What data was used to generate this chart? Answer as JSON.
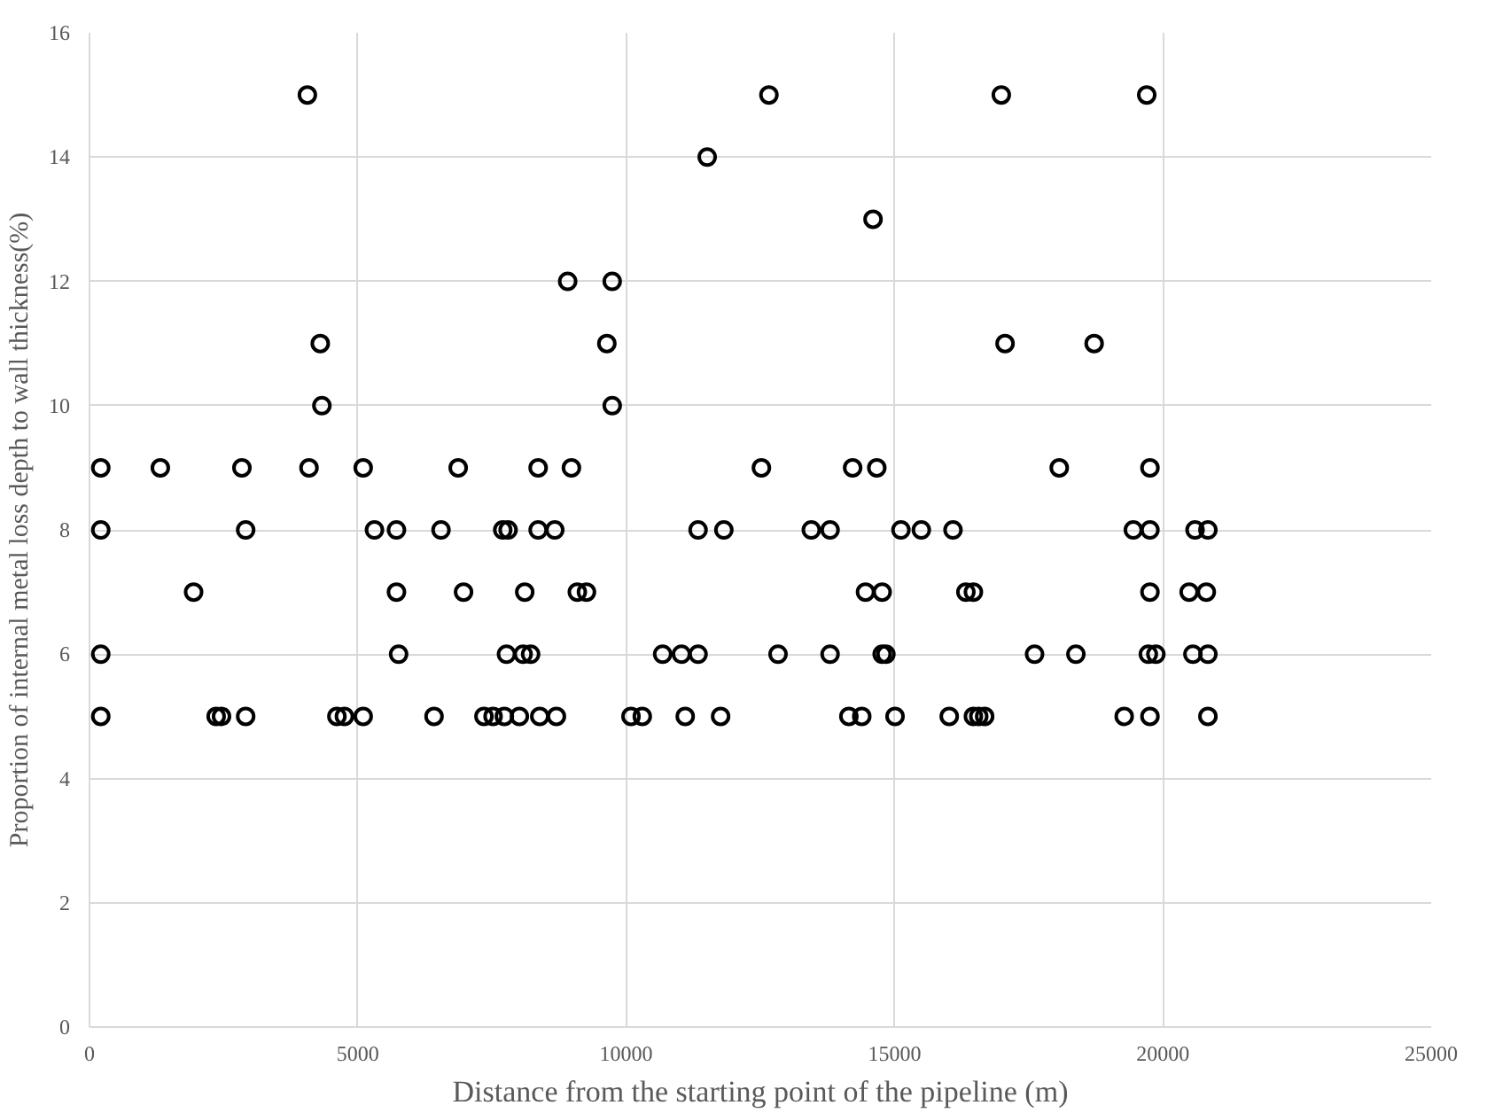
{
  "chart_data": {
    "type": "scatter",
    "xlabel": "Distance from the starting point of the pipeline (m)",
    "ylabel": "Proportion of internal metal loss depth to wall thickness(%)",
    "xlim": [
      0,
      25000
    ],
    "xticks": [
      0,
      5000,
      10000,
      15000,
      20000,
      25000
    ],
    "ylim": [
      0,
      16
    ],
    "yticks": [
      0,
      2,
      4,
      6,
      8,
      10,
      12,
      14,
      16
    ],
    "grid": true,
    "marker": "circle",
    "series": [
      {
        "color": "#000000",
        "x": [
          4060,
          12660,
          16990,
          19700,
          11510,
          14600,
          8910,
          9740,
          4300,
          9640,
          17060,
          18720,
          4330,
          9740,
          210,
          1320,
          2840,
          4090,
          5100,
          6870,
          8360,
          8980,
          12520,
          14220,
          14670,
          18070,
          19760,
          210,
          2910,
          5310,
          5720,
          6550,
          7700,
          7800,
          8360,
          8670,
          11340,
          11820,
          13450,
          13800,
          15120,
          15500,
          16090,
          19450,
          19760,
          20600,
          20840,
          1940,
          5720,
          6970,
          8110,
          9090,
          9260,
          14460,
          14770,
          16330,
          16470,
          19760,
          20490,
          20810,
          210,
          5760,
          7770,
          8080,
          8220,
          10680,
          11030,
          11340,
          12830,
          13800,
          14770,
          14840,
          17610,
          18380,
          19730,
          19870,
          20560,
          20840,
          210,
          2360,
          2460,
          2910,
          4610,
          4750,
          5100,
          6420,
          7350,
          7520,
          7730,
          8010,
          8390,
          8700,
          10090,
          10300,
          11100,
          11760,
          14150,
          14390,
          15010,
          16020,
          16470,
          16570,
          16680,
          19280,
          19760,
          20840
        ],
        "values": [
          15,
          15,
          15,
          15,
          14,
          13,
          12,
          12,
          11,
          11,
          11,
          11,
          10,
          10,
          9,
          9,
          9,
          9,
          9,
          9,
          9,
          9,
          9,
          9,
          9,
          9,
          9,
          8,
          8,
          8,
          8,
          8,
          8,
          8,
          8,
          8,
          8,
          8,
          8,
          8,
          8,
          8,
          8,
          8,
          8,
          8,
          8,
          7,
          7,
          7,
          7,
          7,
          7,
          7,
          7,
          7,
          7,
          7,
          7,
          7,
          6,
          6,
          6,
          6,
          6,
          6,
          6,
          6,
          6,
          6,
          6,
          6,
          6,
          6,
          6,
          6,
          6,
          6,
          5,
          5,
          5,
          5,
          5,
          5,
          5,
          5,
          5,
          5,
          5,
          5,
          5,
          5,
          5,
          5,
          5,
          5,
          5,
          5,
          5,
          5,
          5,
          5,
          5,
          5,
          5,
          5
        ]
      }
    ]
  }
}
